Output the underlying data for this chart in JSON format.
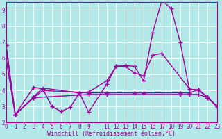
{
  "background_color": "#b2e8e8",
  "line_color": "#990099",
  "grid_color": "#ffffff",
  "xlabel": "Windchill (Refroidissement éolien,°C)",
  "xlim": [
    0,
    23
  ],
  "ylim": [
    2,
    9.5
  ],
  "yticks": [
    2,
    3,
    4,
    5,
    6,
    7,
    8,
    9
  ],
  "xtick_positions": [
    0,
    1,
    2,
    3,
    4,
    5,
    6,
    7,
    8,
    9,
    11,
    12,
    13,
    14,
    15,
    16,
    17,
    18,
    19,
    20,
    21,
    22,
    23
  ],
  "xtick_labels": [
    "0",
    "1",
    "2",
    "3",
    "4",
    "5",
    "6",
    "7",
    "8",
    "9",
    "11",
    "12",
    "13",
    "14",
    "15",
    "16",
    "17",
    "18",
    "19",
    "20",
    "21",
    "22",
    "23"
  ],
  "grid_xticks": [
    0,
    1,
    2,
    3,
    4,
    5,
    6,
    7,
    8,
    9,
    10,
    11,
    12,
    13,
    14,
    15,
    16,
    17,
    18,
    19,
    20,
    21,
    22,
    23
  ],
  "series": [
    {
      "x": [
        0,
        1,
        3,
        4,
        8,
        9,
        11,
        12,
        13,
        14,
        15,
        16,
        17,
        20,
        21,
        22,
        23
      ],
      "y": [
        6.8,
        2.5,
        3.6,
        4.15,
        3.85,
        2.65,
        4.4,
        5.5,
        5.5,
        5.1,
        4.9,
        6.2,
        6.3,
        4.1,
        4.0,
        3.6,
        3.0
      ]
    },
    {
      "x": [
        0,
        1,
        3,
        4,
        5,
        6,
        7,
        8,
        9,
        11,
        12,
        13,
        14,
        15,
        16,
        17,
        18,
        19,
        20,
        21,
        22,
        23
      ],
      "y": [
        6.8,
        2.5,
        4.2,
        4.1,
        3.0,
        2.7,
        2.95,
        3.85,
        3.9,
        4.6,
        5.5,
        5.55,
        5.5,
        4.6,
        7.6,
        9.6,
        9.1,
        7.0,
        4.05,
        4.05,
        3.55,
        3.05
      ]
    },
    {
      "x": [
        0,
        1,
        3,
        4,
        9,
        11,
        14,
        15,
        19,
        20,
        21,
        22,
        23
      ],
      "y": [
        6.0,
        2.5,
        3.55,
        4.0,
        3.85,
        3.85,
        3.85,
        3.85,
        3.85,
        3.85,
        4.05,
        3.55,
        3.0
      ]
    },
    {
      "x": [
        0,
        1,
        3,
        9,
        11,
        19,
        20,
        21,
        22,
        23
      ],
      "y": [
        6.0,
        2.5,
        3.55,
        3.75,
        3.75,
        3.75,
        3.75,
        3.75,
        3.55,
        3.0
      ]
    }
  ],
  "marker": "+",
  "markersize": 4,
  "markeredgewidth": 1.0,
  "linewidth": 1.0,
  "tick_fontsize": 5.5,
  "label_fontsize": 6.0
}
